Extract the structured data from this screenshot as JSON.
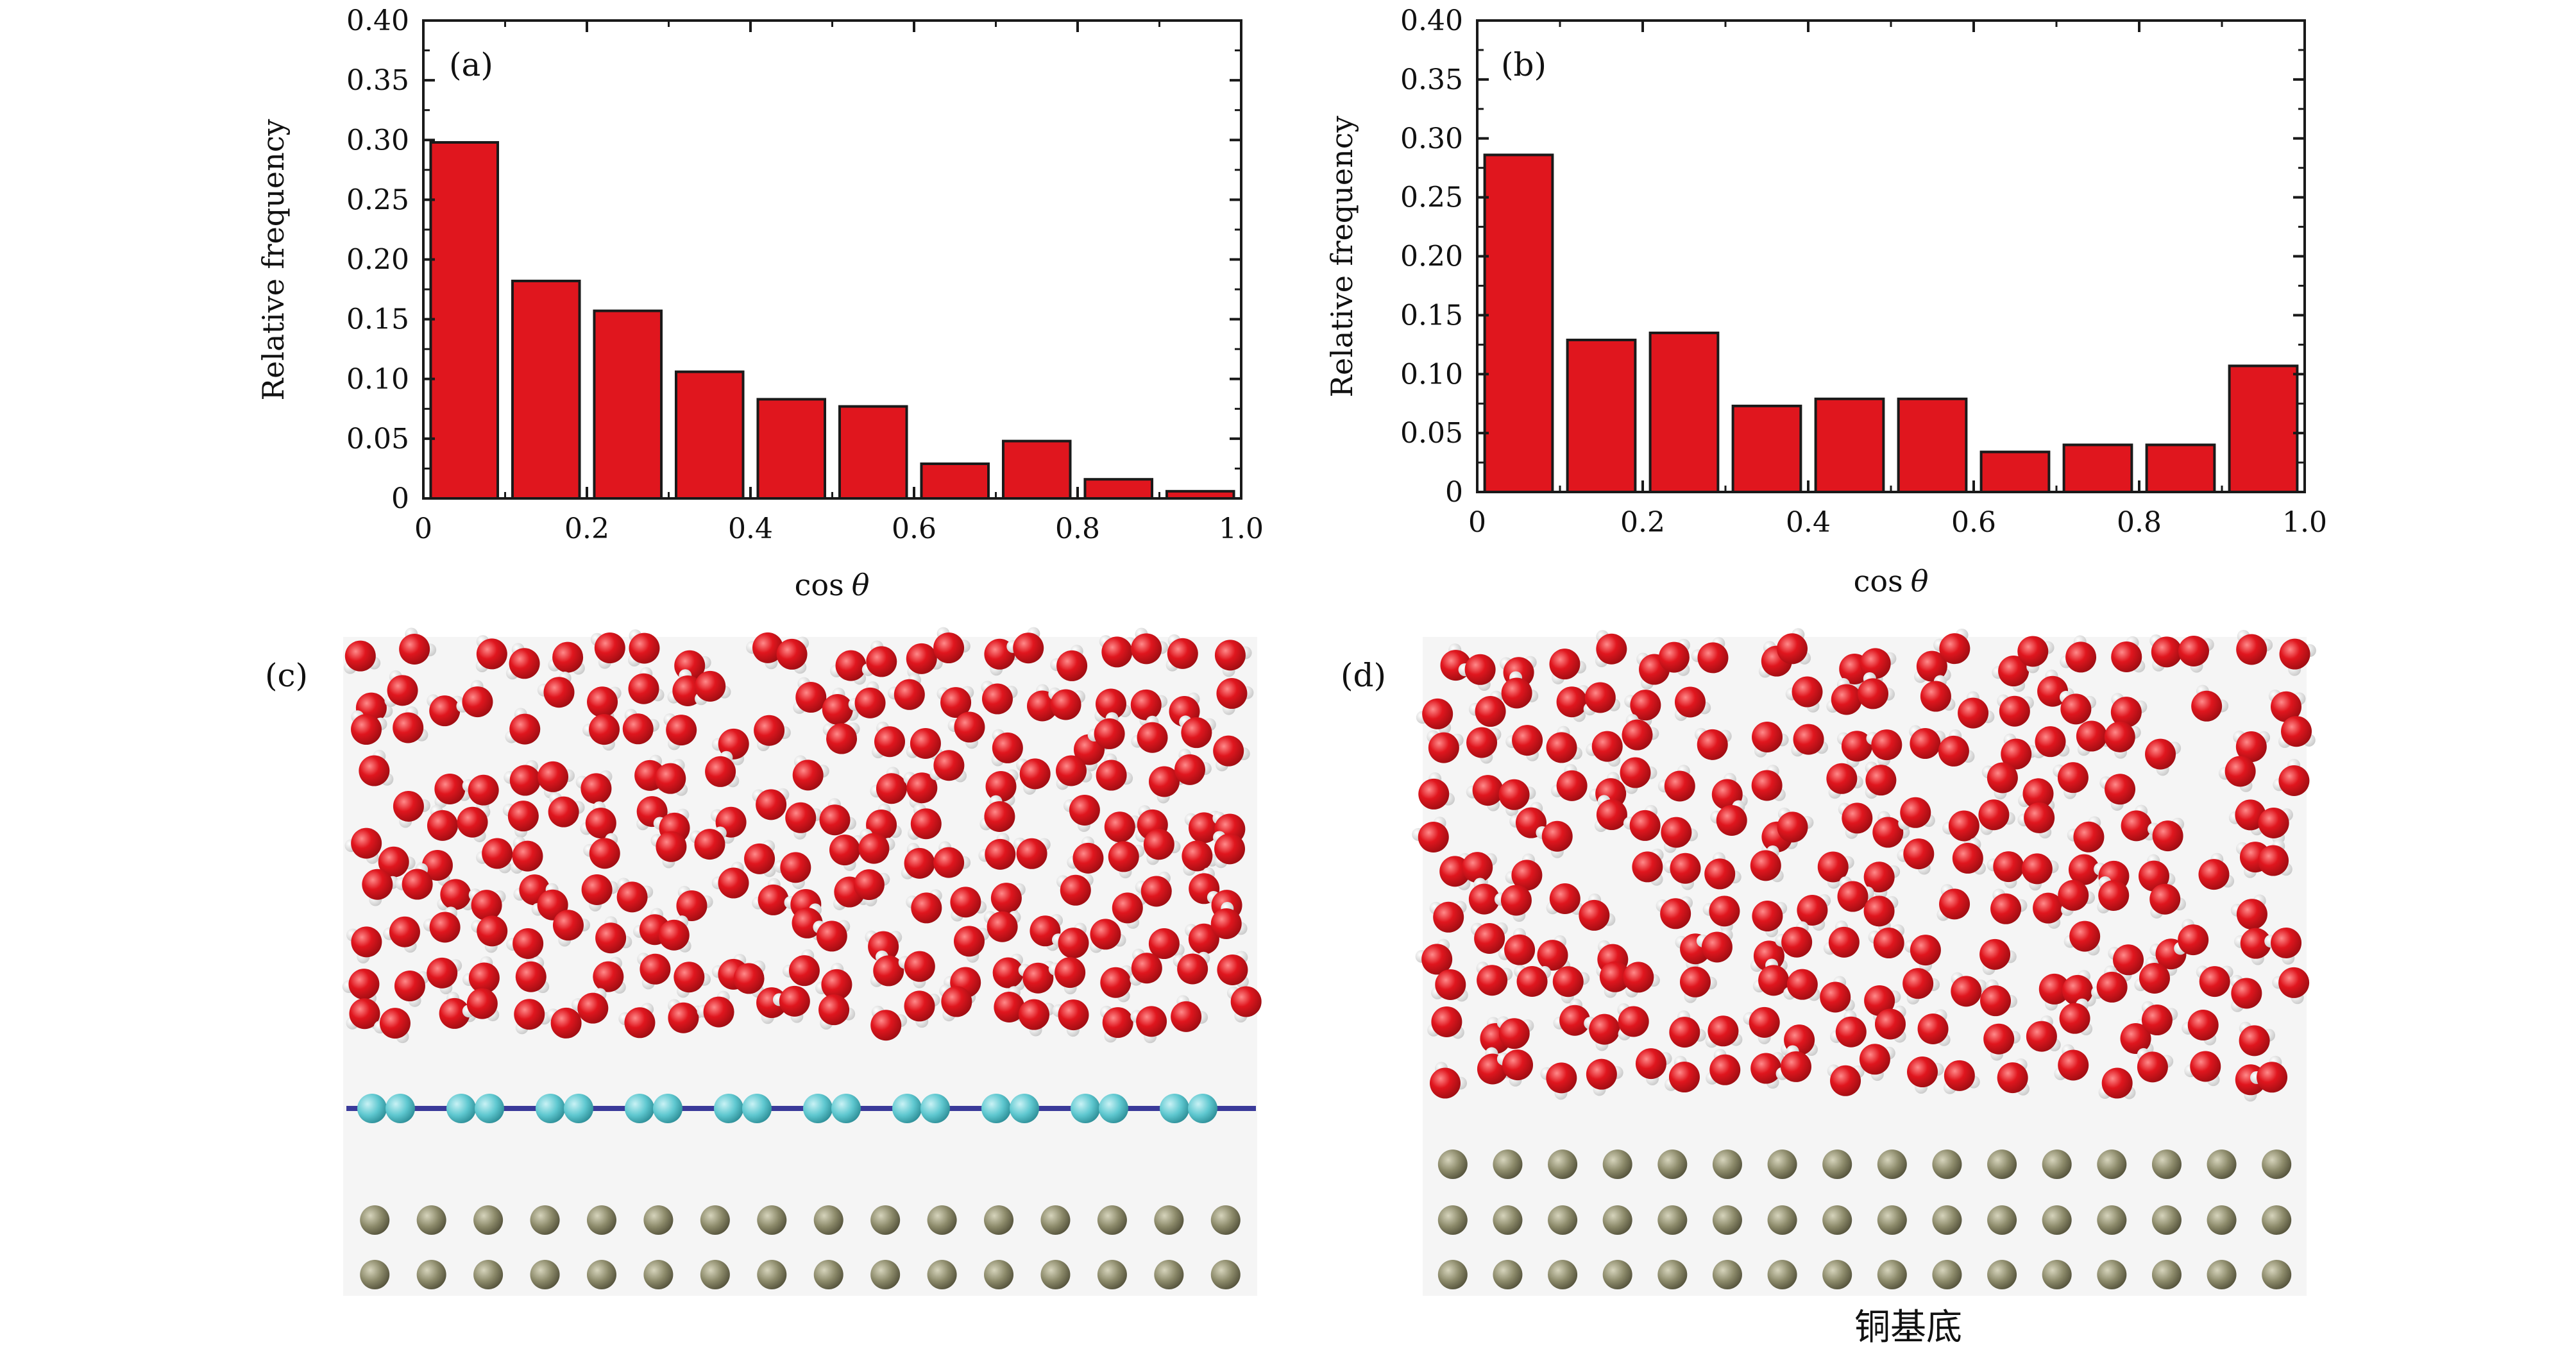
{
  "colors": {
    "bar_fill": "#e0161e",
    "bar_stroke": "#1a1a1a",
    "axis": "#1a1a1a",
    "sim_background": "#f5f5f5",
    "oxygen": "#d8131c",
    "oxygen_highlight": "#f05050",
    "hydrogen": "#f2f2f2",
    "graphene_atom": "#5fc8d0",
    "graphene_bond": "#3a3a9a",
    "copper_atom": "#8c8a6a",
    "copper_highlight": "#b6b498"
  },
  "chart_data": [
    {
      "id": "a",
      "type": "bar",
      "panel_label": "(a)",
      "xlabel_prefix": "cos",
      "xlabel_symbol": "θ",
      "ylabel": "Relative frequency",
      "xlim": [
        0,
        1.0
      ],
      "ylim": [
        0,
        0.4
      ],
      "bin_width": 0.1,
      "categories": [
        "0.0-0.1",
        "0.1-0.2",
        "0.2-0.3",
        "0.3-0.4",
        "0.4-0.5",
        "0.5-0.6",
        "0.6-0.7",
        "0.7-0.8",
        "0.8-0.9",
        "0.9-1.0"
      ],
      "values": [
        0.298,
        0.182,
        0.157,
        0.106,
        0.083,
        0.077,
        0.029,
        0.048,
        0.016,
        0.006
      ],
      "x_ticks": [
        "0",
        "0.2",
        "0.4",
        "0.6",
        "0.8",
        "1.0"
      ],
      "y_ticks": [
        "0",
        "0.05",
        "0.10",
        "0.15",
        "0.20",
        "0.25",
        "0.30",
        "0.35",
        "0.40"
      ]
    },
    {
      "id": "b",
      "type": "bar",
      "panel_label": "(b)",
      "xlabel_prefix": "cos",
      "xlabel_symbol": "θ",
      "ylabel": "Relative frequency",
      "xlim": [
        0,
        1.0
      ],
      "ylim": [
        0,
        0.4
      ],
      "bin_width": 0.1,
      "categories": [
        "0.0-0.1",
        "0.1-0.2",
        "0.2-0.3",
        "0.3-0.4",
        "0.4-0.5",
        "0.5-0.6",
        "0.6-0.7",
        "0.7-0.8",
        "0.8-0.9",
        "0.9-1.0"
      ],
      "values": [
        0.286,
        0.129,
        0.135,
        0.073,
        0.079,
        0.079,
        0.034,
        0.04,
        0.04,
        0.107
      ],
      "x_ticks": [
        "0",
        "0.2",
        "0.4",
        "0.6",
        "0.8",
        "1.0"
      ],
      "y_ticks": [
        "0",
        "0.05",
        "0.10",
        "0.15",
        "0.20",
        "0.25",
        "0.30",
        "0.35",
        "0.40"
      ]
    }
  ],
  "snapshots": {
    "c": {
      "panel_label": "(c)",
      "water_seed": 11,
      "graphene_pairs": 10,
      "copper_cols": 16,
      "copper_rows": 2
    },
    "d": {
      "panel_label": "(d)",
      "water_seed": 29,
      "copper_cols": 16,
      "copper_rows": 3,
      "caption": "铜基底"
    }
  }
}
